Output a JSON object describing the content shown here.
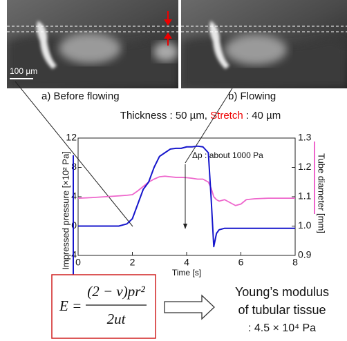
{
  "images": {
    "scale_bar": "100 µm",
    "left_caption": "a) Before flowing",
    "right_caption": "b) Flowing"
  },
  "conditions": {
    "thickness": "Thickness : 50 µm,",
    "stretch": "Stretch",
    "stretch_value": ": 40 µm"
  },
  "chart_data": {
    "type": "line",
    "x_label": "Time [s]",
    "y_label": "Impressed pressure [×10² Pa]",
    "y2_label": "Tube diameter [mm]",
    "annotation": "Δp : about 1000 Pa",
    "xlim": [
      0,
      8
    ],
    "xticks": [
      0,
      2,
      4,
      6,
      8
    ],
    "ylim": [
      -4,
      12
    ],
    "yticks": [
      -4,
      0,
      4,
      8,
      12
    ],
    "y2lim": [
      0.9,
      1.3
    ],
    "y2ticks": [
      0.9,
      {
        "value": 1,
        "label": "1.0"
      },
      1.1,
      1.2,
      1.3
    ],
    "x": [
      0,
      0.5,
      1,
      1.5,
      1.8,
      2,
      2.2,
      2.4,
      2.6,
      2.8,
      3,
      3.2,
      3.4,
      3.6,
      3.8,
      4,
      4.2,
      4.4,
      4.6,
      4.8,
      4.9,
      5,
      5.1,
      5.2,
      5.4,
      5.6,
      5.8,
      6,
      6.2,
      6.5,
      7,
      7.5,
      8
    ],
    "series": [
      {
        "color": "#1515cc",
        "values": [
          0,
          0,
          0,
          0,
          0.3,
          1,
          3,
          5,
          6,
          8,
          9.5,
          10,
          10.5,
          10.6,
          10.6,
          10.8,
          10.8,
          10.9,
          10.8,
          10,
          4,
          -2.8,
          -1,
          -0.5,
          -0.3,
          -0.3,
          -0.3,
          -0.3,
          -0.3,
          -0.3,
          -0.3,
          -0.3,
          -0.3
        ]
      },
      {
        "color": "#ee66cc",
        "axis": "y2",
        "values": [
          1.095,
          1.097,
          1.1,
          1.103,
          1.105,
          1.107,
          1.12,
          1.135,
          1.15,
          1.16,
          1.168,
          1.17,
          1.168,
          1.166,
          1.166,
          1.165,
          1.163,
          1.16,
          1.16,
          1.15,
          1.13,
          1.1,
          1.09,
          1.085,
          1.09,
          1.08,
          1.07,
          1.075,
          1.09,
          1.093,
          1.095,
          1.095,
          1.095
        ]
      }
    ]
  },
  "equation": {
    "lhs": "E =",
    "numerator": "(2 − ν)pr²",
    "denominator": "2ut"
  },
  "result": {
    "line1": "Young’s modulus",
    "line2": "of tubular tissue",
    "line3": ": 4.5 × 10⁴ Pa"
  }
}
